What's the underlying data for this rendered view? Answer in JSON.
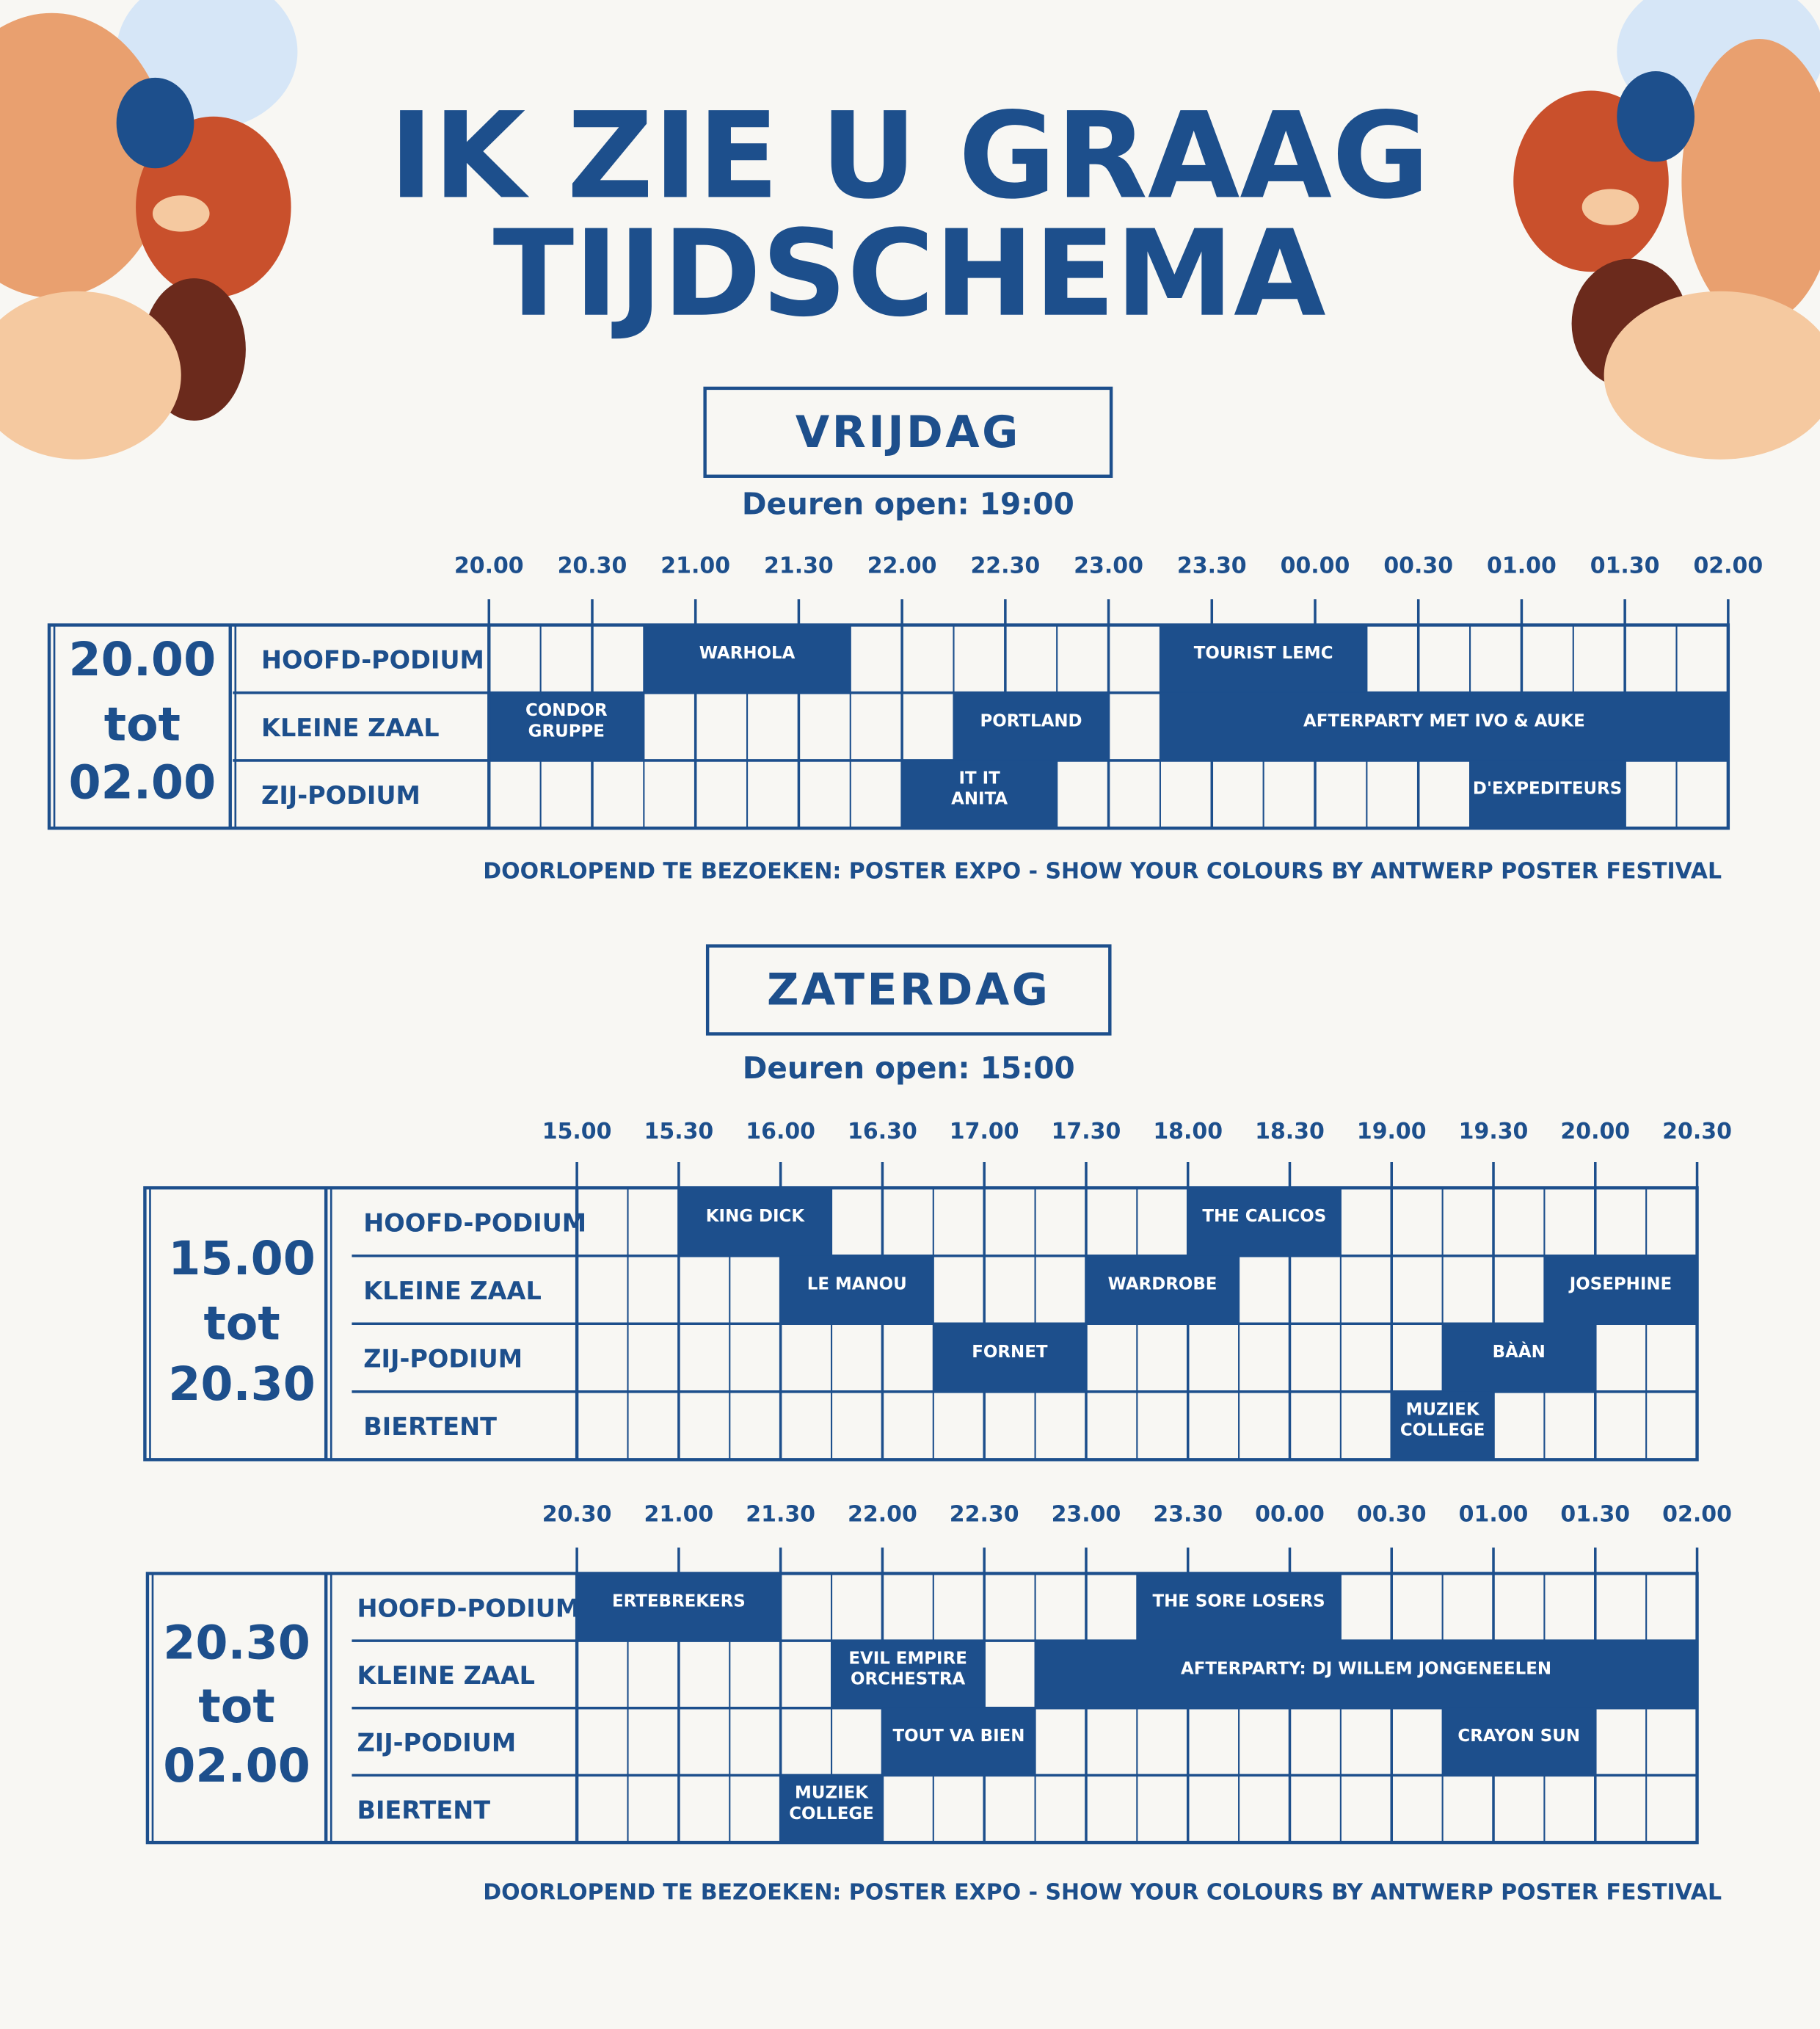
{
  "header": {
    "title_lines": [
      "IK ZIE U GRAAG",
      "TIJDSCHEMA"
    ]
  },
  "days": [
    {
      "name": "VRIJDAG",
      "doors": "Deuren open: 19:00",
      "note": "DOORLOPEND TE BEZOEKEN: POSTER EXPO - SHOW YOUR COLOURS BY ANTWERP POSTER FESTIVAL",
      "blocks": [
        {
          "period": [
            "20.00",
            "tot",
            "02.00"
          ],
          "xlim": [
            20,
            26
          ],
          "ticks": [
            {
              "value": 20,
              "label": "20.00"
            },
            {
              "value": 20.5,
              "label": "20.30"
            },
            {
              "value": 21,
              "label": "21.00"
            },
            {
              "value": 21.5,
              "label": "21.30"
            },
            {
              "value": 22,
              "label": "22.00"
            },
            {
              "value": 22.5,
              "label": "22.30"
            },
            {
              "value": 23,
              "label": "23.00"
            },
            {
              "value": 23.5,
              "label": "23.30"
            },
            {
              "value": 24,
              "label": "00.00"
            },
            {
              "value": 24.5,
              "label": "00.30"
            },
            {
              "value": 25,
              "label": "01.00"
            },
            {
              "value": 25.5,
              "label": "01.30"
            },
            {
              "value": 26,
              "label": "02.00"
            }
          ],
          "stages": [
            {
              "name": "HOOFD-PODIUM",
              "events": [
                {
                  "name": [
                    "WARHOLA"
                  ],
                  "start": 20.75,
                  "end": 21.75
                },
                {
                  "name": [
                    "TOURIST LEMC"
                  ],
                  "start": 23.25,
                  "end": 24.25
                }
              ]
            },
            {
              "name": "KLEINE ZAAL",
              "events": [
                {
                  "name": [
                    "CONDOR",
                    "GRUPPE"
                  ],
                  "start": 20,
                  "end": 20.75
                },
                {
                  "name": [
                    "PORTLAND"
                  ],
                  "start": 22.25,
                  "end": 23
                },
                {
                  "name": [
                    "AFTERPARTY MET IVO & AUKE"
                  ],
                  "start": 23.25,
                  "end": 26
                }
              ]
            },
            {
              "name": "ZIJ-PODIUM",
              "events": [
                {
                  "name": [
                    "IT IT",
                    "ANITA"
                  ],
                  "start": 22,
                  "end": 22.75
                },
                {
                  "name": [
                    "D'EXPEDITEURS"
                  ],
                  "start": 24.75,
                  "end": 25.5
                }
              ]
            }
          ]
        }
      ]
    },
    {
      "name": "ZATERDAG",
      "doors": "Deuren open: 15:00",
      "note": "DOORLOPEND TE BEZOEKEN: POSTER EXPO - SHOW YOUR COLOURS BY ANTWERP POSTER FESTIVAL",
      "blocks": [
        {
          "period": [
            "15.00",
            "tot",
            "20.30"
          ],
          "xlim": [
            15,
            20.5
          ],
          "ticks": [
            {
              "value": 15,
              "label": "15.00"
            },
            {
              "value": 15.5,
              "label": "15.30"
            },
            {
              "value": 16,
              "label": "16.00"
            },
            {
              "value": 16.5,
              "label": "16.30"
            },
            {
              "value": 17,
              "label": "17.00"
            },
            {
              "value": 17.5,
              "label": "17.30"
            },
            {
              "value": 18,
              "label": "18.00"
            },
            {
              "value": 18.5,
              "label": "18.30"
            },
            {
              "value": 19,
              "label": "19.00"
            },
            {
              "value": 19.5,
              "label": "19.30"
            },
            {
              "value": 20,
              "label": "20.00"
            },
            {
              "value": 20.5,
              "label": "20.30"
            }
          ],
          "stages": [
            {
              "name": "HOOFD-PODIUM",
              "events": [
                {
                  "name": [
                    "KING DICK"
                  ],
                  "start": 15.5,
                  "end": 16.25
                },
                {
                  "name": [
                    "THE CALICOS"
                  ],
                  "start": 18,
                  "end": 18.75
                }
              ]
            },
            {
              "name": "KLEINE ZAAL",
              "events": [
                {
                  "name": [
                    "LE MANOU"
                  ],
                  "start": 16,
                  "end": 16.75
                },
                {
                  "name": [
                    "WARDROBE"
                  ],
                  "start": 17.5,
                  "end": 18.25
                },
                {
                  "name": [
                    "JOSEPHINE"
                  ],
                  "start": 19.75,
                  "end": 20.5
                }
              ]
            },
            {
              "name": "ZIJ-PODIUM",
              "events": [
                {
                  "name": [
                    "FORNET"
                  ],
                  "start": 16.75,
                  "end": 17.5
                },
                {
                  "name": [
                    "BÀÀN"
                  ],
                  "start": 19.25,
                  "end": 20
                }
              ]
            },
            {
              "name": "BIERTENT",
              "events": [
                {
                  "name": [
                    "MUZIEK",
                    "COLLEGE"
                  ],
                  "start": 19,
                  "end": 19.5
                }
              ]
            }
          ]
        },
        {
          "period": [
            "20.30",
            "tot",
            "02.00"
          ],
          "xlim": [
            20.5,
            26
          ],
          "ticks": [
            {
              "value": 20.5,
              "label": "20.30"
            },
            {
              "value": 21,
              "label": "21.00"
            },
            {
              "value": 21.5,
              "label": "21.30"
            },
            {
              "value": 22,
              "label": "22.00"
            },
            {
              "value": 22.5,
              "label": "22.30"
            },
            {
              "value": 23,
              "label": "23.00"
            },
            {
              "value": 23.5,
              "label": "23.30"
            },
            {
              "value": 24,
              "label": "00.00"
            },
            {
              "value": 24.5,
              "label": "00.30"
            },
            {
              "value": 25,
              "label": "01.00"
            },
            {
              "value": 25.5,
              "label": "01.30"
            },
            {
              "value": 26,
              "label": "02.00"
            }
          ],
          "stages": [
            {
              "name": "HOOFD-PODIUM",
              "events": [
                {
                  "name": [
                    "ERTEBREKERS"
                  ],
                  "start": 20.5,
                  "end": 21.5
                },
                {
                  "name": [
                    "THE SORE LOSERS"
                  ],
                  "start": 23.25,
                  "end": 24.25
                }
              ]
            },
            {
              "name": "KLEINE ZAAL",
              "events": [
                {
                  "name": [
                    "EVIL EMPIRE",
                    "ORCHESTRA"
                  ],
                  "start": 21.75,
                  "end": 22.5
                },
                {
                  "name": [
                    "AFTERPARTY: DJ WILLEM JONGENEELEN"
                  ],
                  "start": 22.75,
                  "end": 26
                }
              ]
            },
            {
              "name": "ZIJ-PODIUM",
              "events": [
                {
                  "name": [
                    "TOUT VA BIEN"
                  ],
                  "start": 22,
                  "end": 22.75
                },
                {
                  "name": [
                    "CRAYON SUN"
                  ],
                  "start": 24.75,
                  "end": 25.5
                }
              ]
            },
            {
              "name": "BIERTENT",
              "events": [
                {
                  "name": [
                    "MUZIEK",
                    "COLLEGE"
                  ],
                  "start": 21.5,
                  "end": 22
                }
              ]
            }
          ]
        }
      ]
    }
  ]
}
